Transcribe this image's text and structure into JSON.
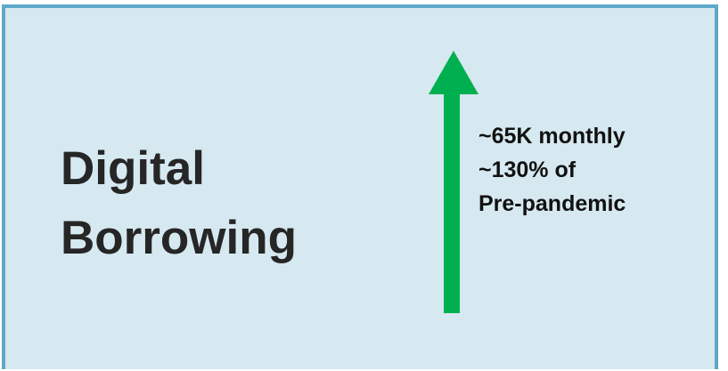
{
  "title": {
    "line1": "Digital",
    "line2": "Borrowing"
  },
  "stats": {
    "line1": "~65K monthly",
    "line2": "~130% of",
    "line3": "Pre-pandemic"
  },
  "arrow": {
    "icon": "up-arrow-icon",
    "color": "#00b050"
  },
  "colors": {
    "background": "#d6e9f0",
    "border": "#5ea9c8",
    "text": "#262626"
  }
}
